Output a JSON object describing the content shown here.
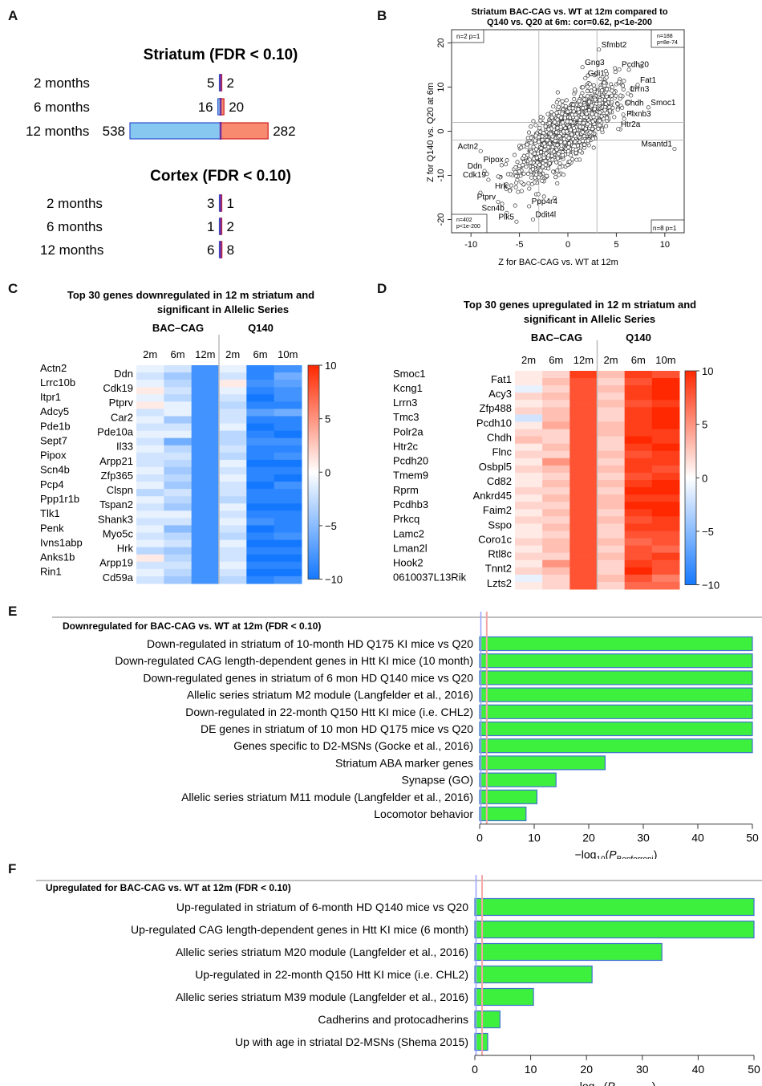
{
  "panel_labels": {
    "a": "A",
    "b": "B",
    "c": "C",
    "d": "D",
    "e": "E",
    "f": "F"
  },
  "panelA": {
    "striatum_title": "Striatum (FDR < 0.10)",
    "cortex_title": "Cortex (FDR < 0.10)",
    "colors": {
      "down": "#87c8f0",
      "up": "#f88a70",
      "edge_down": "#3050d0",
      "edge_up": "#d02020",
      "center": "#7030a0"
    }
  },
  "panelB": {
    "title_line1": "Striatum BAC-CAG vs. WT at 12m compared to",
    "title_line2": "Q140 vs. Q20 at 6m:   cor=0.62, p<1e-200",
    "xlabel": "Z for BAC-CAG vs. WT at 12m",
    "ylabel": "Z for Q140 vs. Q20 at 6m",
    "corner_tl": "n=2  p=1",
    "corner_tr_1": "n=188",
    "corner_tr_2": "p=8e-74",
    "corner_bl_1": "n=402",
    "corner_bl_2": "p<1e-200",
    "corner_br": "n=8  p=1"
  },
  "panelC": {
    "title_line1": "Top 30 genes downregulated in 12 m striatum and",
    "title_line2": "significant in Allelic Series",
    "group1": "BAC–CAG",
    "group2": "Q140",
    "columns": [
      "2m",
      "6m",
      "12m",
      "2m",
      "6m",
      "10m"
    ],
    "left_genes": [
      "Actn2",
      "Lrrc10b",
      "Itpr1",
      "Adcy5",
      "Pde1b",
      "Sept7",
      "Pipox",
      "Scn4b",
      "Pcp4",
      "Ppp1r1b",
      "Tlk1",
      "Penk",
      "Ivns1abp",
      "Anks1b",
      "Rin1"
    ],
    "right_genes": [
      "Ddn",
      "Cdk19",
      "Ptprv",
      "Car2",
      "Pde10a",
      "Il33",
      "Arpp21",
      "Zfp365",
      "Clspn",
      "Tspan2",
      "Shank3",
      "Myo5c",
      "Hrk",
      "Arpp19",
      "Cd59a"
    ],
    "scale_labels": [
      "10",
      "5",
      "0",
      "−5",
      "−10"
    ]
  },
  "panelD": {
    "title_line1": "Top 30 genes upregulated in 12 m striatum and",
    "title_line2": "significant in Allelic Series",
    "group1": "BAC–CAG",
    "group2": "Q140",
    "columns": [
      "2m",
      "6m",
      "12m",
      "2m",
      "6m",
      "10m"
    ],
    "left_genes": [
      "Smoc1",
      "Kcng1",
      "Lrrn3",
      "Tmc3",
      "Polr2a",
      "Htr2c",
      "Pcdh20",
      "Tmem9",
      "Rprm",
      "Pcdhb3",
      "Prkcq",
      "Lamc2",
      "Lman2l",
      "Hook2",
      "0610037L13Rik"
    ],
    "right_genes": [
      "Fat1",
      "Acy3",
      "Zfp488",
      "Pcdh10",
      "Chdh",
      "Flnc",
      "Osbpl5",
      "Cd82",
      "Ankrd45",
      "Faim2",
      "Sspo",
      "Coro1c",
      "Rtl8c",
      "Tnnt2",
      "Lzts2"
    ],
    "scale_labels": [
      "10",
      "5",
      "0",
      "−5",
      "−10"
    ]
  },
  "panelE": {
    "header": "Downregulated for BAC-CAG vs. WT at 12m (FDR < 0.10)"
  },
  "panelF": {
    "header": "Upregulated for BAC-CAG vs. WT at 12m (FDR < 0.10)"
  },
  "chart_data": [
    {
      "type": "bar",
      "panel": "A-striatum",
      "title": "Striatum (FDR < 0.10)",
      "categories": [
        "2 months",
        "6 months",
        "12 months"
      ],
      "series": [
        {
          "name": "down",
          "values": [
            5,
            16,
            538
          ]
        },
        {
          "name": "up",
          "values": [
            2,
            20,
            282
          ]
        }
      ]
    },
    {
      "type": "bar",
      "panel": "A-cortex",
      "title": "Cortex (FDR < 0.10)",
      "categories": [
        "2 months",
        "6 months",
        "12 months"
      ],
      "series": [
        {
          "name": "down",
          "values": [
            3,
            1,
            6
          ]
        },
        {
          "name": "up",
          "values": [
            1,
            2,
            8
          ]
        }
      ]
    },
    {
      "type": "scatter",
      "panel": "B",
      "title": "Striatum BAC-CAG vs. WT at 12m compared to Q140 vs. Q20 at 6m:   cor=0.62, p<1e-200",
      "xlabel": "Z for BAC-CAG vs. WT at 12m",
      "ylabel": "Z for Q140 vs. Q20 at 6m",
      "xlim": [
        -12,
        12
      ],
      "ylim": [
        -23,
        23
      ],
      "xticks": [
        -10,
        -5,
        0,
        5,
        10
      ],
      "yticks": [
        -20,
        -10,
        0,
        10,
        20
      ],
      "threshold_lines": {
        "x": [
          -3,
          3
        ],
        "y": [
          -2,
          2
        ]
      },
      "labeled_points": [
        {
          "label": "Sfmbt2",
          "x": 3.2,
          "y": 18.5
        },
        {
          "label": "Gng3",
          "x": 1.5,
          "y": 14.5
        },
        {
          "label": "Pcdh20",
          "x": 5.3,
          "y": 14
        },
        {
          "label": "Gdi1",
          "x": 1.8,
          "y": 12
        },
        {
          "label": "Fat1",
          "x": 7.2,
          "y": 10.5
        },
        {
          "label": "Lrrn3",
          "x": 6.2,
          "y": 8.5
        },
        {
          "label": "Chdh",
          "x": 5.6,
          "y": 5.3
        },
        {
          "label": "Smoc1",
          "x": 8.3,
          "y": 5.4
        },
        {
          "label": "Plxnb3",
          "x": 5.8,
          "y": 2.8
        },
        {
          "label": "Htr2a",
          "x": 5.2,
          "y": 0.5
        },
        {
          "label": "Msantd1",
          "x": 11,
          "y": -4
        },
        {
          "label": "Actn2",
          "x": -9,
          "y": -4.5
        },
        {
          "label": "Pipox",
          "x": -6.4,
          "y": -7.5
        },
        {
          "label": "Ddn",
          "x": -8.6,
          "y": -9
        },
        {
          "label": "Cdk19",
          "x": -8.2,
          "y": -11
        },
        {
          "label": "Hrk",
          "x": -6,
          "y": -13.5
        },
        {
          "label": "Ptprv",
          "x": -7.2,
          "y": -16
        },
        {
          "label": "Ppp4r4",
          "x": -4,
          "y": -17
        },
        {
          "label": "Scn4b",
          "x": -6.3,
          "y": -18.5
        },
        {
          "label": "Plk5",
          "x": -5.3,
          "y": -20.5
        },
        {
          "label": "Ddit4l",
          "x": -3.6,
          "y": -20
        }
      ]
    },
    {
      "type": "heatmap",
      "panel": "C",
      "title": "Top 30 genes downregulated in 12 m striatum and significant in Allelic Series",
      "columns": [
        "2m",
        "6m",
        "12m",
        "2m",
        "6m",
        "10m"
      ],
      "column_groups": [
        {
          "name": "BAC–CAG",
          "span": 3
        },
        {
          "name": "Q140",
          "span": 3
        }
      ],
      "scale": [
        -10,
        10
      ],
      "rows": [
        [
          -1,
          -2,
          -8,
          -1,
          -9,
          -8
        ],
        [
          -2,
          -4,
          -8,
          -2,
          -9,
          -6
        ],
        [
          -1,
          -3,
          -8,
          1,
          -8,
          -7
        ],
        [
          1,
          -2,
          -8,
          -1,
          -9,
          -8
        ],
        [
          -1,
          -3,
          -8,
          -2,
          -10,
          -8
        ],
        [
          1,
          -1,
          -8,
          -3,
          -9,
          -9
        ],
        [
          -2,
          -1,
          -8,
          -2,
          -7,
          -6
        ],
        [
          -1,
          -4,
          -8,
          -2,
          -9,
          -9
        ],
        [
          -2,
          -2,
          -8,
          -1,
          -10,
          -9
        ],
        [
          -1,
          -1,
          -8,
          -3,
          -9,
          -10
        ],
        [
          -2,
          -6,
          -8,
          -3,
          -8,
          -8
        ],
        [
          -1,
          -3,
          -8,
          -2,
          -9,
          -9
        ],
        [
          -2,
          -2,
          -8,
          -3,
          -9,
          -8
        ],
        [
          -2,
          -3,
          -8,
          -1,
          -10,
          -10
        ],
        [
          -1,
          -4,
          -8,
          -2,
          -9,
          -9
        ],
        [
          -2,
          -3,
          -8,
          -1,
          -9,
          -10
        ],
        [
          -1,
          -4,
          -8,
          -2,
          -10,
          -8
        ],
        [
          -3,
          -2,
          -8,
          -2,
          -9,
          -9
        ],
        [
          -1,
          -3,
          -8,
          -3,
          -9,
          -9
        ],
        [
          -2,
          -4,
          -8,
          -1,
          -10,
          -10
        ],
        [
          -1,
          -1,
          -8,
          -2,
          -9,
          -9
        ],
        [
          -2,
          -2,
          -8,
          -1,
          -8,
          -9
        ],
        [
          -1,
          -5,
          -8,
          -2,
          -10,
          -9
        ],
        [
          -2,
          -3,
          -8,
          -3,
          -9,
          -8
        ],
        [
          -1,
          -2,
          -8,
          -1,
          -10,
          -10
        ],
        [
          -3,
          -4,
          -8,
          -2,
          -9,
          -9
        ],
        [
          1,
          -3,
          -8,
          -2,
          -10,
          -10
        ],
        [
          -2,
          -2,
          -8,
          -1,
          -9,
          -9
        ],
        [
          -1,
          -3,
          -8,
          -2,
          -10,
          -10
        ],
        [
          -2,
          -4,
          -8,
          -3,
          -9,
          -8
        ]
      ]
    },
    {
      "type": "heatmap",
      "panel": "D",
      "title": "Top 30 genes upregulated in 12 m striatum and significant in Allelic Series",
      "columns": [
        "2m",
        "6m",
        "12m",
        "2m",
        "6m",
        "10m"
      ],
      "column_groups": [
        {
          "name": "BAC–CAG",
          "span": 3
        },
        {
          "name": "Q140",
          "span": 3
        }
      ],
      "scale": [
        -10,
        10
      ],
      "rows": [
        [
          1,
          2,
          9,
          3,
          9,
          8
        ],
        [
          1,
          3,
          8,
          2,
          8,
          10
        ],
        [
          -1,
          2,
          8,
          3,
          9,
          10
        ],
        [
          2,
          3,
          8,
          2,
          9,
          10
        ],
        [
          1,
          2,
          8,
          3,
          8,
          9
        ],
        [
          2,
          3,
          8,
          2,
          9,
          10
        ],
        [
          -2,
          3,
          8,
          2,
          9,
          10
        ],
        [
          1,
          4,
          8,
          3,
          9,
          10
        ],
        [
          2,
          2,
          8,
          3,
          9,
          9
        ],
        [
          3,
          2,
          8,
          2,
          10,
          9
        ],
        [
          1,
          3,
          8,
          2,
          9,
          10
        ],
        [
          2,
          2,
          8,
          3,
          8,
          9
        ],
        [
          1,
          5,
          8,
          2,
          9,
          9
        ],
        [
          2,
          3,
          8,
          3,
          9,
          8
        ],
        [
          1,
          2,
          8,
          2,
          8,
          9
        ],
        [
          1,
          3,
          8,
          3,
          9,
          10
        ],
        [
          2,
          2,
          8,
          2,
          10,
          10
        ],
        [
          1,
          3,
          8,
          3,
          9,
          9
        ],
        [
          2,
          2,
          8,
          3,
          10,
          10
        ],
        [
          1,
          3,
          8,
          2,
          9,
          10
        ],
        [
          2,
          2,
          8,
          3,
          8,
          9
        ],
        [
          1,
          3,
          8,
          2,
          9,
          9
        ],
        [
          1,
          2,
          8,
          2,
          8,
          8
        ],
        [
          2,
          3,
          8,
          3,
          7,
          8
        ],
        [
          1,
          3,
          8,
          2,
          8,
          7
        ],
        [
          2,
          2,
          8,
          3,
          8,
          9
        ],
        [
          1,
          5,
          8,
          2,
          9,
          8
        ],
        [
          2,
          3,
          8,
          2,
          10,
          8
        ],
        [
          -1,
          2,
          8,
          3,
          8,
          6
        ],
        [
          1,
          2,
          8,
          2,
          7,
          7
        ]
      ]
    },
    {
      "type": "bar",
      "panel": "E",
      "orientation": "horizontal",
      "title": "Downregulated for BAC-CAG vs. WT at 12m (FDR < 0.10)",
      "xlabel": "−log10(P_Bonferroni)",
      "xlim": [
        0,
        50
      ],
      "xticks": [
        0,
        10,
        20,
        30,
        40,
        50
      ],
      "categories": [
        "Down-regulated in striatum of 10-month HD Q175 KI mice vs Q20",
        "Down-regulated CAG length-dependent genes in Htt KI mice (10 month)",
        "Down-regulated genes in striatum of 6 mon HD Q140 mice vs Q20",
        "Allelic series striatum M2 module (Langfelder et al., 2016)",
        "Down-regulated in 22-month Q150 Htt KI mice (i.e. CHL2)",
        "DE genes in striatum of 10 mon HD Q175 mice vs Q20",
        "Genes specific to D2-MSNs (Gocke et al., 2016)",
        "Striatum ABA marker genes",
        "Synapse (GO)",
        "Allelic series striatum M11 module (Langfelder et al., 2016)",
        "Locomotor behavior"
      ],
      "values": [
        50,
        50,
        50,
        50,
        50,
        50,
        50,
        23,
        14,
        10.5,
        8.5
      ]
    },
    {
      "type": "bar",
      "panel": "F",
      "orientation": "horizontal",
      "title": "Upregulated for BAC-CAG vs. WT at 12m (FDR < 0.10)",
      "xlabel": "−log10(P_Bonferroni)",
      "xlim": [
        0,
        50
      ],
      "xticks": [
        0,
        10,
        20,
        30,
        40,
        50
      ],
      "categories": [
        "Up-regulated in striatum of 6-month HD Q140 mice vs Q20",
        "Up-regulated CAG length-dependent genes in Htt KI mice (6 month)",
        "Allelic series striatum M20 module (Langfelder et al., 2016)",
        "Up-regulated in 22-month Q150 Htt KI mice (i.e. CHL2)",
        "Allelic series striatum M39 module (Langfelder et al., 2016)",
        "Cadherins and protocadherins",
        "Up with age in striatal D2-MSNs (Shema 2015)"
      ],
      "values": [
        50,
        50,
        33.5,
        21,
        10.5,
        4.5,
        2.3
      ]
    }
  ]
}
